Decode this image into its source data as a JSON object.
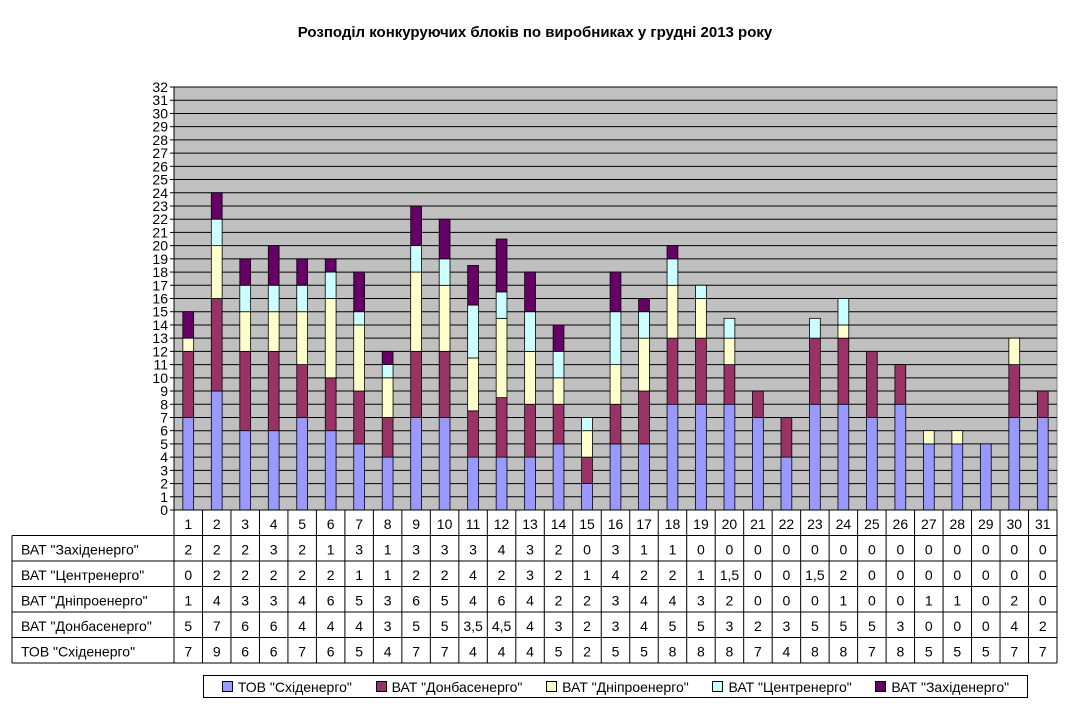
{
  "chart_data": {
    "type": "bar",
    "stacked": true,
    "title": "Розподіл конкуруючих блоків по виробниках у грудні 2013 року",
    "categories": [
      "1",
      "2",
      "3",
      "4",
      "5",
      "6",
      "7",
      "8",
      "9",
      "10",
      "11",
      "12",
      "13",
      "14",
      "15",
      "16",
      "17",
      "18",
      "19",
      "20",
      "21",
      "22",
      "23",
      "24",
      "25",
      "26",
      "27",
      "28",
      "29",
      "30",
      "31"
    ],
    "ylim": [
      0,
      32
    ],
    "yticks": [
      0,
      1,
      2,
      3,
      4,
      5,
      6,
      7,
      8,
      9,
      10,
      11,
      12,
      13,
      14,
      15,
      16,
      17,
      18,
      19,
      20,
      21,
      22,
      23,
      24,
      25,
      26,
      27,
      28,
      29,
      30,
      31,
      32
    ],
    "grid": true,
    "legend_position": "bottom",
    "series": [
      {
        "name": "ТОВ \"Сxiденерго\"",
        "color": "#9999ff",
        "values": [
          7,
          9,
          6,
          6,
          7,
          6,
          5,
          4,
          7,
          7,
          4,
          4,
          4,
          5,
          2,
          5,
          5,
          8,
          8,
          8,
          7,
          4,
          8,
          8,
          7,
          8,
          5,
          5,
          5,
          7,
          7
        ],
        "labels": [
          "7",
          "9",
          "6",
          "6",
          "7",
          "6",
          "5",
          "4",
          "7",
          "7",
          "4",
          "4",
          "4",
          "5",
          "2",
          "5",
          "5",
          "8",
          "8",
          "8",
          "7",
          "4",
          "8",
          "8",
          "7",
          "8",
          "5",
          "5",
          "5",
          "7",
          "7"
        ]
      },
      {
        "name": "ВАТ \"Донбасенерго\"",
        "color": "#993366",
        "values": [
          5,
          7,
          6,
          6,
          4,
          4,
          4,
          3,
          5,
          5,
          3.5,
          4.5,
          4,
          3,
          2,
          3,
          4,
          5,
          5,
          3,
          2,
          3,
          5,
          5,
          5,
          3,
          0,
          0,
          0,
          4,
          2
        ],
        "labels": [
          "5",
          "7",
          "6",
          "6",
          "4",
          "4",
          "4",
          "3",
          "5",
          "5",
          "3,5",
          "4,5",
          "4",
          "3",
          "2",
          "3",
          "4",
          "5",
          "5",
          "3",
          "2",
          "3",
          "5",
          "5",
          "5",
          "3",
          "0",
          "0",
          "0",
          "4",
          "2"
        ]
      },
      {
        "name": "ВАТ \"Днiпроенерго\"",
        "color": "#ffffcc",
        "values": [
          1,
          4,
          3,
          3,
          4,
          6,
          5,
          3,
          6,
          5,
          4,
          6,
          4,
          2,
          2,
          3,
          4,
          4,
          3,
          2,
          0,
          0,
          0,
          1,
          0,
          0,
          1,
          1,
          0,
          2,
          0
        ],
        "labels": [
          "1",
          "4",
          "3",
          "3",
          "4",
          "6",
          "5",
          "3",
          "6",
          "5",
          "4",
          "6",
          "4",
          "2",
          "2",
          "3",
          "4",
          "4",
          "3",
          "2",
          "0",
          "0",
          "0",
          "1",
          "0",
          "0",
          "1",
          "1",
          "0",
          "2",
          "0"
        ]
      },
      {
        "name": "ВАТ \"Центренерго\"",
        "color": "#ccffff",
        "values": [
          0,
          2,
          2,
          2,
          2,
          2,
          1,
          1,
          2,
          2,
          4,
          2,
          3,
          2,
          1,
          4,
          2,
          2,
          1,
          1.5,
          0,
          0,
          1.5,
          2,
          0,
          0,
          0,
          0,
          0,
          0,
          0
        ],
        "labels": [
          "0",
          "2",
          "2",
          "2",
          "2",
          "2",
          "1",
          "1",
          "2",
          "2",
          "4",
          "2",
          "3",
          "2",
          "1",
          "4",
          "2",
          "2",
          "1",
          "1,5",
          "0",
          "0",
          "1,5",
          "2",
          "0",
          "0",
          "0",
          "0",
          "0",
          "0",
          "0"
        ]
      },
      {
        "name": "ВАТ \"Захiденерго\"",
        "color": "#660066",
        "values": [
          2,
          2,
          2,
          3,
          2,
          1,
          3,
          1,
          3,
          3,
          3,
          4,
          3,
          2,
          0,
          3,
          1,
          1,
          0,
          0,
          0,
          0,
          0,
          0,
          0,
          0,
          0,
          0,
          0,
          0,
          0
        ],
        "labels": [
          "2",
          "2",
          "2",
          "3",
          "2",
          "1",
          "3",
          "1",
          "3",
          "3",
          "3",
          "4",
          "3",
          "2",
          "0",
          "3",
          "1",
          "1",
          "0",
          "0",
          "0",
          "0",
          "0",
          "0",
          "0",
          "0",
          "0",
          "0",
          "0",
          "0",
          "0"
        ]
      }
    ],
    "table_row_order": [
      "ВАТ \"Захiденерго\"",
      "ВАТ \"Центренерго\"",
      "ВАТ \"Днiпроенерго\"",
      "ВАТ \"Донбасенерго\"",
      "ТОВ \"Сxiденерго\""
    ]
  }
}
